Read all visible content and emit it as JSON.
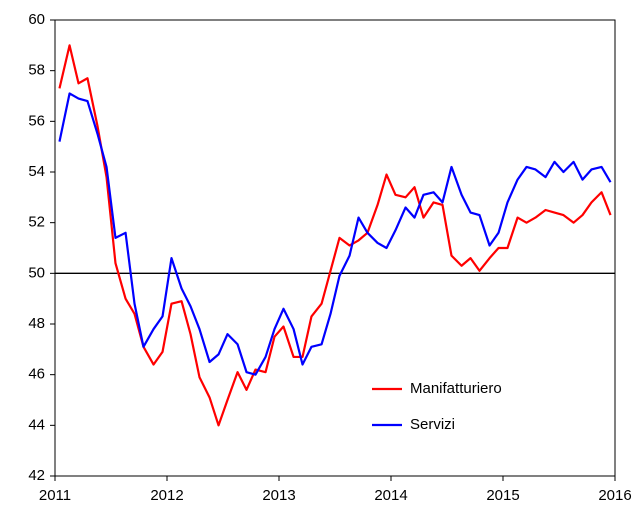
{
  "chart_data": {
    "type": "line",
    "x": [
      2011.04,
      2011.13,
      2011.21,
      2011.29,
      2011.38,
      2011.46,
      2011.54,
      2011.63,
      2011.71,
      2011.79,
      2011.88,
      2011.96,
      2012.04,
      2012.13,
      2012.21,
      2012.29,
      2012.38,
      2012.46,
      2012.54,
      2012.63,
      2012.71,
      2012.79,
      2012.88,
      2012.96,
      2013.04,
      2013.13,
      2013.21,
      2013.29,
      2013.38,
      2013.46,
      2013.54,
      2013.63,
      2013.71,
      2013.79,
      2013.88,
      2013.96,
      2014.04,
      2014.13,
      2014.21,
      2014.29,
      2014.38,
      2014.46,
      2014.54,
      2014.63,
      2014.71,
      2014.79,
      2014.88,
      2014.96,
      2015.04,
      2015.13,
      2015.21,
      2015.29,
      2015.38,
      2015.46,
      2015.54,
      2015.63,
      2015.71,
      2015.79,
      2015.88,
      2015.96
    ],
    "series": [
      {
        "name": "Manifatturiero",
        "color": "#ff0000",
        "values": [
          57.3,
          59.0,
          57.5,
          57.7,
          55.8,
          53.8,
          50.4,
          49.0,
          48.4,
          47.1,
          46.4,
          46.9,
          48.8,
          48.9,
          47.6,
          45.9,
          45.1,
          44.0,
          45.0,
          46.1,
          45.4,
          46.2,
          46.1,
          47.5,
          47.9,
          46.7,
          46.7,
          48.3,
          48.8,
          50.1,
          51.4,
          51.1,
          51.3,
          51.6,
          52.7,
          53.9,
          53.1,
          53.0,
          53.4,
          52.2,
          52.8,
          52.7,
          50.7,
          50.3,
          50.6,
          50.1,
          50.6,
          51.0,
          51.0,
          52.2,
          52.0,
          52.2,
          52.5,
          52.4,
          52.3,
          52.0,
          52.3,
          52.8,
          53.2,
          52.3
        ]
      },
      {
        "name": "Servizi",
        "color": "#0000ff",
        "values": [
          55.2,
          57.1,
          56.9,
          56.8,
          55.5,
          54.2,
          51.4,
          51.6,
          48.8,
          47.1,
          47.8,
          48.3,
          50.6,
          49.4,
          48.7,
          47.8,
          46.5,
          46.8,
          47.6,
          47.2,
          46.1,
          46.0,
          46.7,
          47.8,
          48.6,
          47.8,
          46.4,
          47.1,
          47.2,
          48.4,
          49.9,
          50.7,
          52.2,
          51.6,
          51.2,
          51.0,
          51.7,
          52.6,
          52.2,
          53.1,
          53.2,
          52.8,
          54.2,
          53.1,
          52.4,
          52.3,
          51.1,
          51.6,
          52.8,
          53.7,
          54.2,
          54.1,
          53.8,
          54.4,
          54.0,
          54.4,
          53.7,
          54.1,
          54.2,
          53.6
        ]
      }
    ],
    "xlim": [
      2011,
      2016
    ],
    "xticks": [
      2011,
      2012,
      2013,
      2014,
      2015,
      2016
    ],
    "ylim": [
      42,
      60
    ],
    "yticks": [
      42,
      44,
      46,
      48,
      50,
      52,
      54,
      56,
      58,
      60
    ],
    "hline": 50,
    "legend": "lower right",
    "grid": false
  }
}
